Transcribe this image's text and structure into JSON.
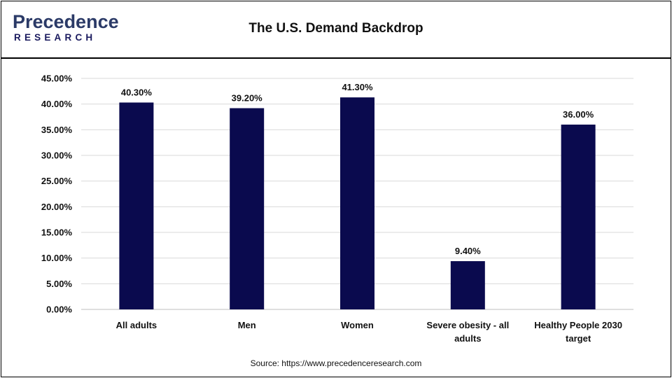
{
  "header": {
    "logo_top": "Precedence",
    "logo_bottom": "RESEARCH",
    "title": "The U.S. Demand Backdrop"
  },
  "source": "Source: https://www.precedenceresearch.com",
  "colors": {
    "bar": "#0a0a4e",
    "grid": "#d9d9d9",
    "logo": "#2b3a67"
  },
  "chart_data": {
    "type": "bar",
    "title": "The U.S. Demand Backdrop",
    "categories": [
      [
        "All adults"
      ],
      [
        "Men"
      ],
      [
        "Women"
      ],
      [
        "Severe obesity - all",
        "adults"
      ],
      [
        "Healthy People 2030",
        "target"
      ]
    ],
    "values": [
      40.3,
      39.2,
      41.3,
      9.4,
      36.0
    ],
    "value_labels": [
      "40.30%",
      "39.20%",
      "41.30%",
      "9.40%",
      "36.00%"
    ],
    "yticks": [
      "0.00%",
      "5.00%",
      "10.00%",
      "15.00%",
      "20.00%",
      "25.00%",
      "30.00%",
      "35.00%",
      "40.00%",
      "45.00%"
    ],
    "ylim": [
      0,
      45
    ],
    "grid": true,
    "legend": "none"
  }
}
